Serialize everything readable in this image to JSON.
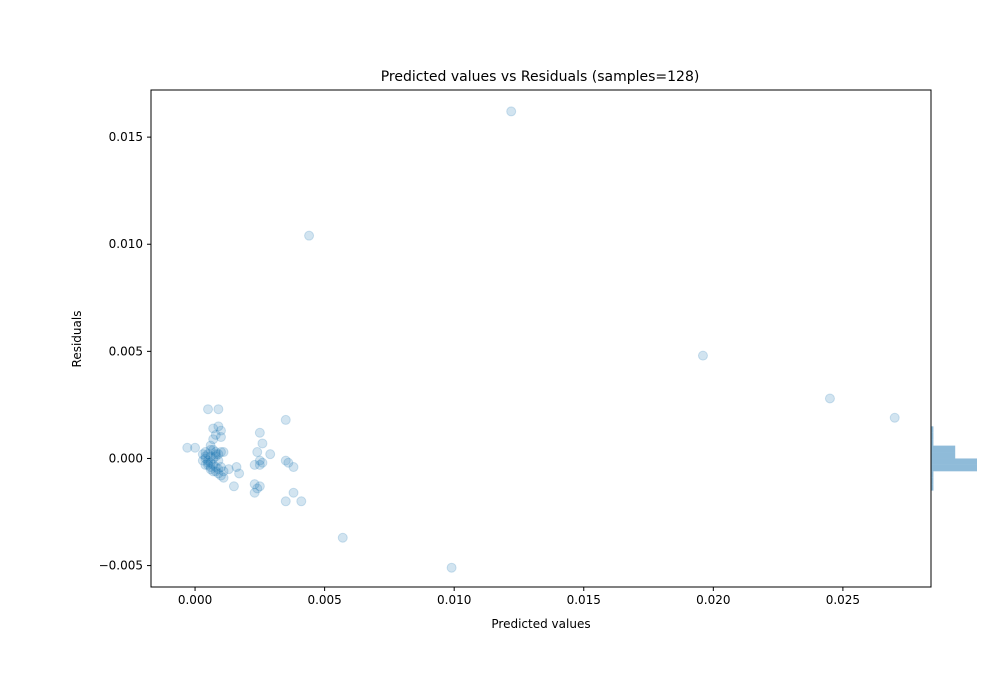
{
  "chart_data": {
    "type": "scatter",
    "title": "Predicted values vs Residuals (samples=128)",
    "xlabel": "Predicted values",
    "ylabel": "Residuals",
    "xlim": [
      -0.0017,
      0.0284
    ],
    "ylim": [
      -0.006,
      0.0172
    ],
    "xticks": [
      0.0,
      0.005,
      0.01,
      0.015,
      0.02,
      0.025
    ],
    "xtick_labels": [
      "0.000",
      "0.005",
      "0.010",
      "0.015",
      "0.020",
      "0.025"
    ],
    "yticks": [
      -0.005,
      0.0,
      0.005,
      0.01,
      0.015
    ],
    "ytick_labels": [
      "−0.005",
      "0.000",
      "0.005",
      "0.010",
      "0.015"
    ],
    "grid": false,
    "point_color": "#1f77b4",
    "point_alpha": 0.2,
    "hist_color": "#1f77b4",
    "hist_alpha": 0.5,
    "points": [
      [
        0.0122,
        0.0162
      ],
      [
        0.0044,
        0.0104
      ],
      [
        0.0196,
        0.0048
      ],
      [
        0.0245,
        0.0028
      ],
      [
        0.027,
        0.0019
      ],
      [
        0.0099,
        -0.0051
      ],
      [
        0.0057,
        -0.0037
      ],
      [
        0.0041,
        -0.002
      ],
      [
        0.0035,
        -0.002
      ],
      [
        0.0038,
        -0.0016
      ],
      [
        0.0035,
        0.0018
      ],
      [
        0.0025,
        0.0012
      ],
      [
        0.0026,
        0.0007
      ],
      [
        0.0029,
        0.0002
      ],
      [
        0.0024,
        0.0003
      ],
      [
        0.0025,
        -0.0001
      ],
      [
        0.0026,
        -0.0002
      ],
      [
        0.0023,
        -0.0003
      ],
      [
        0.0025,
        -0.0003
      ],
      [
        0.0035,
        -0.0001
      ],
      [
        0.0036,
        -0.0002
      ],
      [
        0.0038,
        -0.0004
      ],
      [
        0.0023,
        -0.0012
      ],
      [
        0.0024,
        -0.0014
      ],
      [
        0.0025,
        -0.0013
      ],
      [
        0.0023,
        -0.0016
      ],
      [
        0.0016,
        -0.0004
      ],
      [
        0.0017,
        -0.0007
      ],
      [
        0.0015,
        -0.0013
      ],
      [
        0.0013,
        -0.0005
      ],
      [
        0.0011,
        -0.0009
      ],
      [
        0.0011,
        -0.0006
      ],
      [
        0.0011,
        0.0003
      ],
      [
        0.001,
        0.0013
      ],
      [
        0.0009,
        0.0015
      ],
      [
        0.0009,
        0.0023
      ],
      [
        0.0005,
        0.0023
      ],
      [
        0.0007,
        0.0014
      ],
      [
        0.0008,
        0.0011
      ],
      [
        0.001,
        0.001
      ],
      [
        0.0007,
        0.0009
      ],
      [
        0.0006,
        0.0006
      ],
      [
        0.0006,
        0.0004
      ],
      [
        0.0004,
        0.0003
      ],
      [
        0.0004,
        0.0001
      ],
      [
        0.0004,
        0.0
      ],
      [
        0.0005,
        -0.0001
      ],
      [
        0.0005,
        -0.0002
      ],
      [
        0.0005,
        -0.0003
      ],
      [
        0.0006,
        -0.0004
      ],
      [
        0.0006,
        -0.0005
      ],
      [
        0.0007,
        -0.0006
      ],
      [
        0.0008,
        -0.0006
      ],
      [
        0.0009,
        -0.0007
      ],
      [
        0.001,
        -0.0008
      ],
      [
        0.0007,
        0.0
      ],
      [
        0.0008,
        0.0001
      ],
      [
        0.0009,
        0.0002
      ],
      [
        0.001,
        0.0003
      ],
      [
        0.0008,
        0.0003
      ],
      [
        0.0007,
        0.0004
      ],
      [
        0.0008,
        0.0002
      ],
      [
        0.0009,
        -0.0001
      ],
      [
        0.0006,
        -0.0002
      ],
      [
        0.0007,
        -0.0003
      ],
      [
        0.0008,
        -0.0004
      ],
      [
        0.0009,
        -0.0005
      ],
      [
        0.001,
        -0.0004
      ],
      [
        0.0006,
        0.0001
      ],
      [
        0.0005,
        0.0002
      ],
      [
        -0.0003,
        0.0005
      ],
      [
        0.0,
        0.0005
      ],
      [
        0.0003,
        0.0002
      ],
      [
        0.0003,
        -0.0001
      ],
      [
        0.0004,
        -0.0003
      ]
    ],
    "histogram": {
      "orientation": "horizontal",
      "bins": [
        {
          "start": -0.0015,
          "end": -0.0012,
          "count": 1
        },
        {
          "start": -0.0012,
          "end": -0.0009,
          "count": 1
        },
        {
          "start": -0.0009,
          "end": -0.0006,
          "count": 1
        },
        {
          "start": -0.0006,
          "end": -0.0003,
          "count": 19
        },
        {
          "start": -0.0003,
          "end": 0.0,
          "count": 19
        },
        {
          "start": 0.0,
          "end": 0.0003,
          "count": 10
        },
        {
          "start": 0.0003,
          "end": 0.0006,
          "count": 10
        },
        {
          "start": 0.0006,
          "end": 0.0009,
          "count": 1
        },
        {
          "start": 0.0009,
          "end": 0.0012,
          "count": 1
        },
        {
          "start": 0.0012,
          "end": 0.0015,
          "count": 1
        }
      ]
    }
  }
}
